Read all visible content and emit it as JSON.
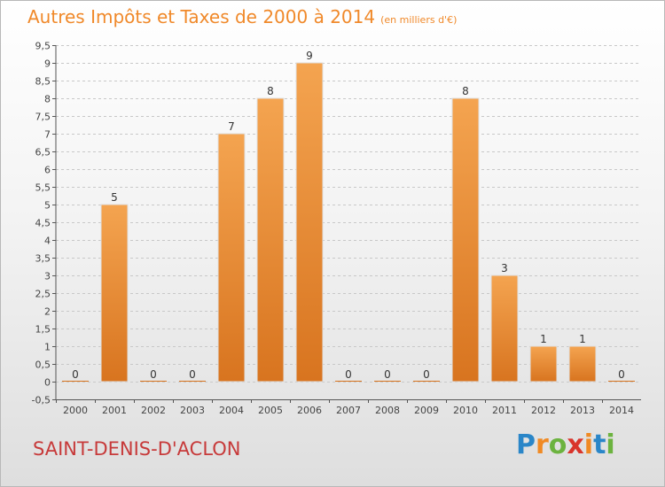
{
  "title": "Autres Impôts et Taxes de 2000 à 2014",
  "unit": "(en milliers d'€)",
  "commune": "SAINT-DENIS-D'ACLON",
  "logo_letters": [
    {
      "ch": "P",
      "color": "#2a86c8"
    },
    {
      "ch": "r",
      "color": "#f08a24"
    },
    {
      "ch": "o",
      "color": "#6cb33f"
    },
    {
      "ch": "x",
      "color": "#d9342b"
    },
    {
      "ch": "i",
      "color": "#f08a24"
    },
    {
      "ch": "t",
      "color": "#2a86c8"
    },
    {
      "ch": "i",
      "color": "#6cb33f"
    }
  ],
  "chart_data": {
    "type": "bar",
    "categories": [
      "2000",
      "2001",
      "2002",
      "2003",
      "2004",
      "2005",
      "2006",
      "2007",
      "2008",
      "2009",
      "2010",
      "2011",
      "2012",
      "2013",
      "2014"
    ],
    "values": [
      0,
      5,
      0,
      0,
      7,
      8,
      9,
      0,
      0,
      0,
      8,
      3,
      1,
      1,
      0
    ],
    "data_labels": [
      "0",
      "5",
      "0",
      "0",
      "7",
      "8",
      "9",
      "0",
      "0",
      "0",
      "8",
      "3",
      "1",
      "1",
      "0"
    ],
    "ylim": [
      -0.5,
      9.5
    ],
    "yticks": [
      "-0,5",
      "0",
      "0,5",
      "1",
      "1,5",
      "2",
      "2,5",
      "3",
      "3,5",
      "4",
      "4,5",
      "5",
      "5,5",
      "6",
      "6,5",
      "7",
      "7,5",
      "8",
      "8,5",
      "9",
      "9,5"
    ],
    "ytick_values": [
      -0.5,
      0,
      0.5,
      1,
      1.5,
      2,
      2.5,
      3,
      3.5,
      4,
      4.5,
      5,
      5.5,
      6,
      6.5,
      7,
      7.5,
      8,
      8.5,
      9,
      9.5
    ],
    "bar_color": "#f09a40",
    "bar_color_dark": "#d8741f",
    "grid": "horizontal dashed",
    "xlabel": "",
    "ylabel": ""
  }
}
